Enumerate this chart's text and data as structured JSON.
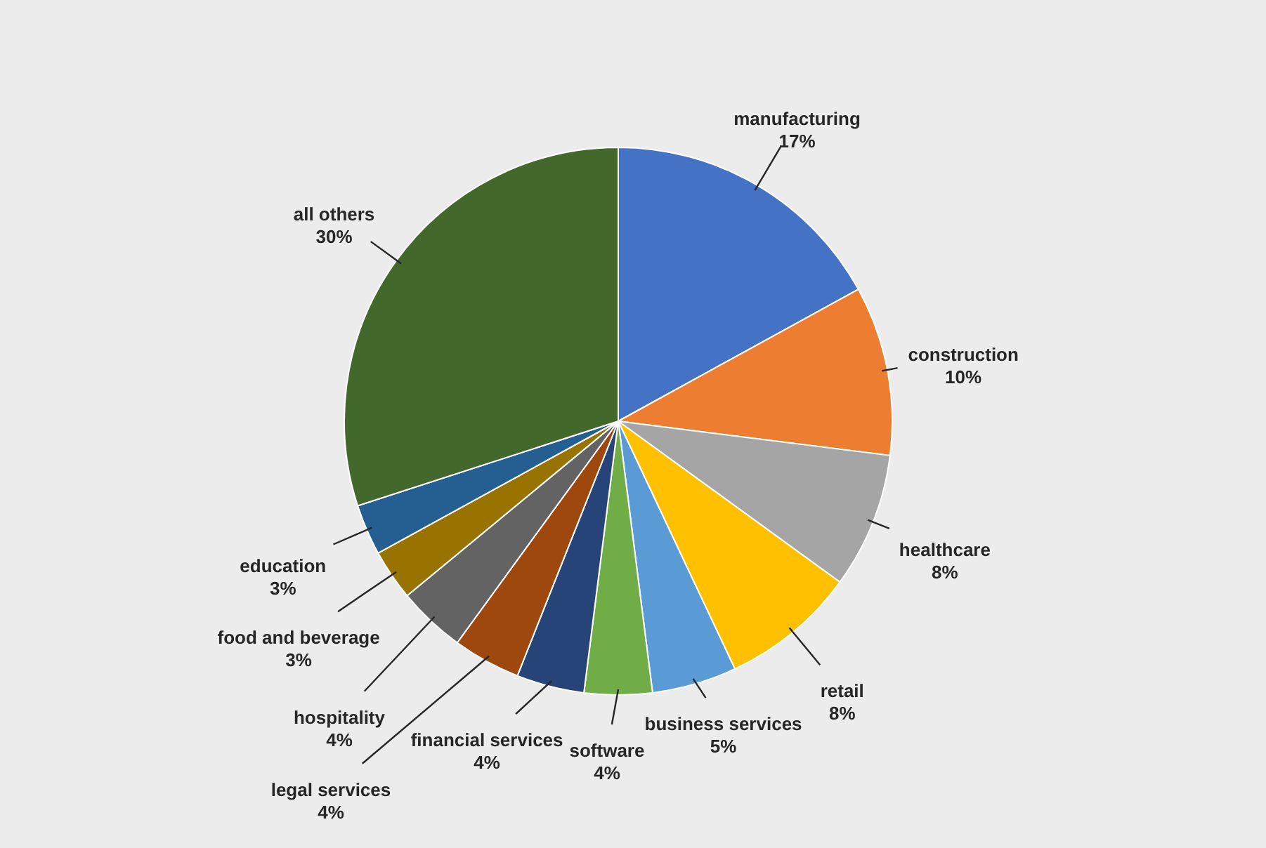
{
  "chart_data": {
    "type": "pie",
    "categories": [
      "manufacturing",
      "construction",
      "healthcare",
      "retail",
      "business services",
      "software",
      "financial services",
      "legal services",
      "hospitality",
      "food and beverage",
      "education",
      "all others"
    ],
    "values": [
      17,
      10,
      8,
      8,
      5,
      4,
      4,
      4,
      4,
      3,
      3,
      30
    ],
    "value_labels": [
      "17%",
      "10%",
      "8%",
      "8%",
      "5%",
      "4%",
      "4%",
      "4%",
      "4%",
      "3%",
      "3%",
      "30%"
    ],
    "colors": [
      "#4472c4",
      "#ed7d31",
      "#a5a5a5",
      "#ffc000",
      "#5b9bd5",
      "#70ad47",
      "#264478",
      "#9e480e",
      "#636363",
      "#997300",
      "#255e91",
      "#43682b"
    ]
  }
}
